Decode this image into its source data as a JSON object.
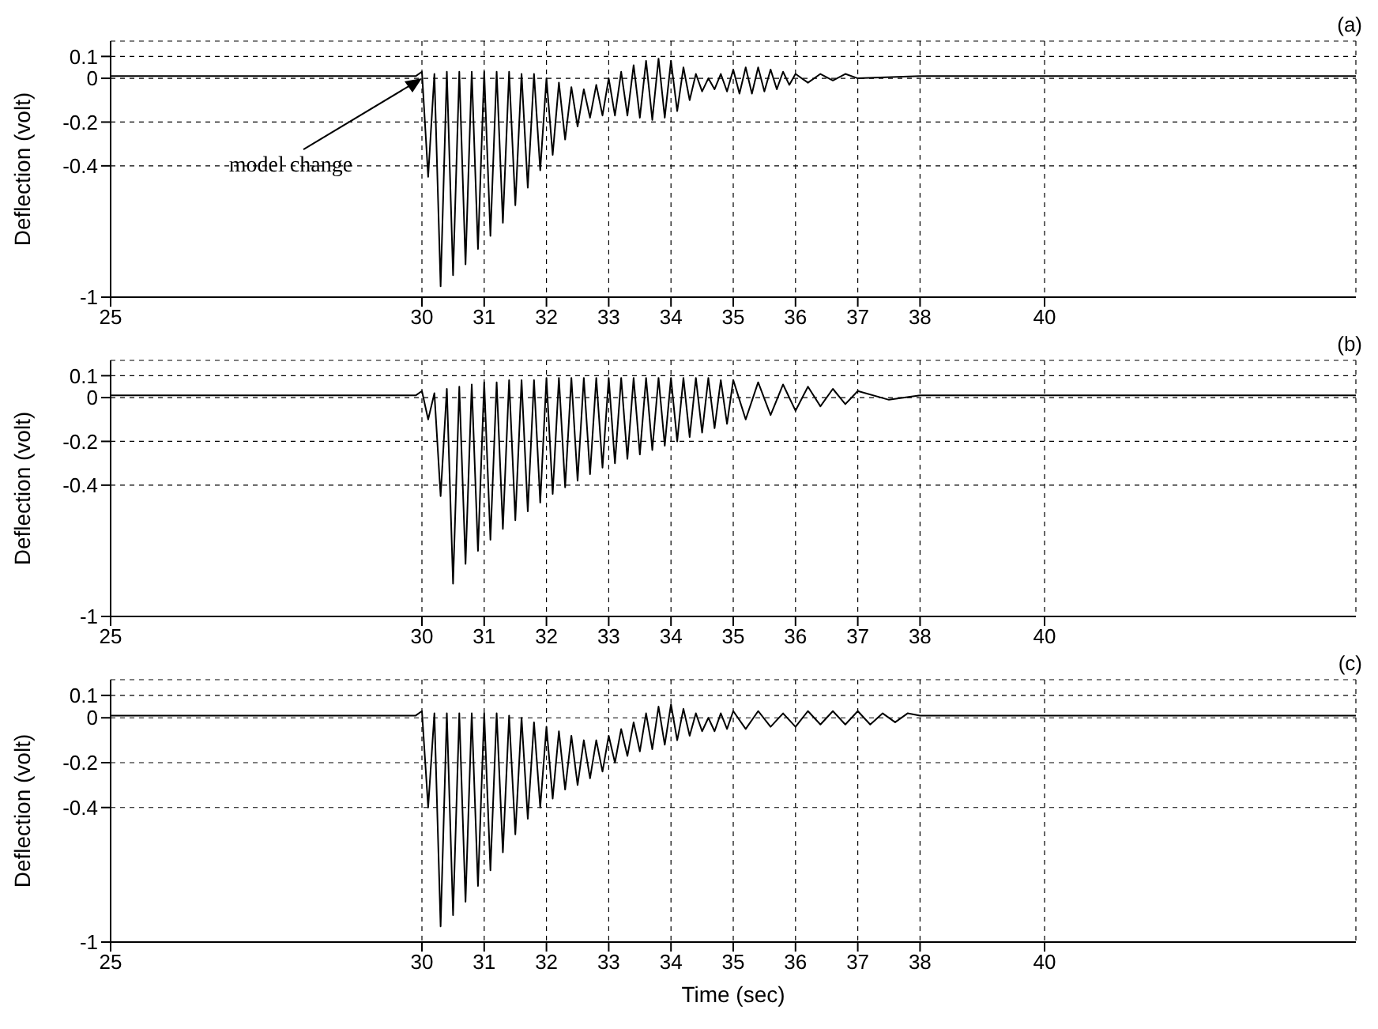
{
  "chart_data": [
    {
      "type": "line",
      "title": "(a)",
      "ylabel": "Deflection (volt)",
      "color": "#000000",
      "grid": true,
      "marker": "none",
      "line_style": "solid",
      "xlim": [
        25,
        45
      ],
      "ylim": [
        -1,
        0.17
      ],
      "xticks": [
        25,
        30,
        31,
        32,
        33,
        34,
        35,
        36,
        37,
        38,
        40
      ],
      "yticks": [
        0.1,
        0,
        -0.2,
        -0.4,
        -1
      ],
      "annotations": [
        {
          "text": "model change",
          "x": 30,
          "y": 0
        }
      ],
      "x": [
        25,
        27,
        29.9,
        30.0,
        30.1,
        30.2,
        30.3,
        30.4,
        30.5,
        30.6,
        30.7,
        30.8,
        30.9,
        31.0,
        31.1,
        31.2,
        31.3,
        31.4,
        31.5,
        31.6,
        31.7,
        31.8,
        31.9,
        32.0,
        32.1,
        32.2,
        32.3,
        32.4,
        32.5,
        32.6,
        32.7,
        32.8,
        32.9,
        33.0,
        33.1,
        33.2,
        33.3,
        33.4,
        33.5,
        33.6,
        33.7,
        33.8,
        33.9,
        34.0,
        34.1,
        34.2,
        34.3,
        34.4,
        34.5,
        34.6,
        34.7,
        34.8,
        34.9,
        35.0,
        35.1,
        35.2,
        35.3,
        35.4,
        35.5,
        35.6,
        35.7,
        35.8,
        35.9,
        36.0,
        36.2,
        36.4,
        36.6,
        36.8,
        37,
        38,
        40,
        45
      ],
      "values": [
        0.01,
        0.01,
        0.01,
        0.03,
        -0.45,
        0.02,
        -0.95,
        0.03,
        -0.9,
        0.03,
        -0.85,
        0.03,
        -0.78,
        0.03,
        -0.72,
        0.03,
        -0.66,
        0.03,
        -0.58,
        0.02,
        -0.5,
        0.02,
        -0.42,
        0.0,
        -0.35,
        -0.02,
        -0.28,
        -0.04,
        -0.22,
        -0.05,
        -0.18,
        -0.03,
        -0.17,
        0.0,
        -0.17,
        0.03,
        -0.17,
        0.06,
        -0.18,
        0.08,
        -0.19,
        0.09,
        -0.18,
        0.08,
        -0.15,
        0.05,
        -0.1,
        0.02,
        -0.06,
        0.0,
        -0.05,
        0.02,
        -0.06,
        0.04,
        -0.07,
        0.05,
        -0.07,
        0.05,
        -0.06,
        0.04,
        -0.05,
        0.03,
        -0.03,
        0.02,
        -0.02,
        0.02,
        -0.01,
        0.02,
        0.0,
        0.01,
        0.01,
        0.01
      ]
    },
    {
      "type": "line",
      "title": "(b)",
      "ylabel": "Deflection (volt)",
      "color": "#000000",
      "grid": true,
      "marker": "none",
      "line_style": "solid",
      "xlim": [
        25,
        45
      ],
      "ylim": [
        -1,
        0.17
      ],
      "xticks": [
        25,
        30,
        31,
        32,
        33,
        34,
        35,
        36,
        37,
        38,
        40
      ],
      "yticks": [
        0.1,
        0,
        -0.2,
        -0.4,
        -1
      ],
      "x": [
        25,
        27,
        29.9,
        30.0,
        30.1,
        30.2,
        30.3,
        30.4,
        30.5,
        30.6,
        30.7,
        30.8,
        30.9,
        31.0,
        31.1,
        31.2,
        31.3,
        31.4,
        31.5,
        31.6,
        31.7,
        31.8,
        31.9,
        32.0,
        32.1,
        32.2,
        32.3,
        32.4,
        32.5,
        32.6,
        32.7,
        32.8,
        32.9,
        33.0,
        33.1,
        33.2,
        33.3,
        33.4,
        33.5,
        33.6,
        33.7,
        33.8,
        33.9,
        34.0,
        34.1,
        34.2,
        34.3,
        34.4,
        34.5,
        34.6,
        34.7,
        34.8,
        34.9,
        35.0,
        35.2,
        35.4,
        35.6,
        35.8,
        36.0,
        36.2,
        36.4,
        36.6,
        36.8,
        37.0,
        37.5,
        38,
        40,
        45
      ],
      "values": [
        0.01,
        0.01,
        0.01,
        0.03,
        -0.1,
        0.02,
        -0.45,
        0.04,
        -0.85,
        0.05,
        -0.76,
        0.06,
        -0.7,
        0.07,
        -0.65,
        0.07,
        -0.6,
        0.08,
        -0.56,
        0.08,
        -0.52,
        0.08,
        -0.48,
        0.09,
        -0.44,
        0.09,
        -0.41,
        0.09,
        -0.38,
        0.09,
        -0.35,
        0.09,
        -0.32,
        0.09,
        -0.3,
        0.09,
        -0.28,
        0.09,
        -0.26,
        0.09,
        -0.24,
        0.09,
        -0.22,
        0.09,
        -0.2,
        0.09,
        -0.18,
        0.09,
        -0.16,
        0.09,
        -0.14,
        0.08,
        -0.12,
        0.08,
        -0.1,
        0.07,
        -0.08,
        0.06,
        -0.06,
        0.05,
        -0.04,
        0.04,
        -0.03,
        0.03,
        -0.01,
        0.01,
        0.01,
        0.01
      ]
    },
    {
      "type": "line",
      "title": "(c)",
      "ylabel": "Deflection (volt)",
      "xlabel": "Time (sec)",
      "color": "#000000",
      "grid": true,
      "marker": "none",
      "line_style": "solid",
      "xlim": [
        25,
        45
      ],
      "ylim": [
        -1,
        0.17
      ],
      "xticks": [
        25,
        30,
        31,
        32,
        33,
        34,
        35,
        36,
        37,
        38,
        40
      ],
      "yticks": [
        0.1,
        0,
        -0.2,
        -0.4,
        -1
      ],
      "x": [
        25,
        27,
        29.9,
        30.0,
        30.1,
        30.2,
        30.3,
        30.4,
        30.5,
        30.6,
        30.7,
        30.8,
        30.9,
        31.0,
        31.1,
        31.2,
        31.3,
        31.4,
        31.5,
        31.6,
        31.7,
        31.8,
        31.9,
        32.0,
        32.1,
        32.2,
        32.3,
        32.4,
        32.5,
        32.6,
        32.7,
        32.8,
        32.9,
        33.0,
        33.1,
        33.2,
        33.3,
        33.4,
        33.5,
        33.6,
        33.7,
        33.8,
        33.9,
        34.0,
        34.1,
        34.2,
        34.3,
        34.4,
        34.5,
        34.6,
        34.7,
        34.8,
        34.9,
        35.0,
        35.2,
        35.4,
        35.6,
        35.8,
        36.0,
        36.2,
        36.4,
        36.6,
        36.8,
        37.0,
        37.2,
        37.4,
        37.6,
        37.8,
        38,
        40,
        45
      ],
      "values": [
        0.01,
        0.01,
        0.01,
        0.03,
        -0.4,
        0.02,
        -0.93,
        0.02,
        -0.88,
        0.02,
        -0.82,
        0.02,
        -0.75,
        0.02,
        -0.68,
        0.02,
        -0.6,
        0.01,
        -0.52,
        0.0,
        -0.45,
        -0.02,
        -0.4,
        -0.04,
        -0.36,
        -0.06,
        -0.32,
        -0.08,
        -0.3,
        -0.1,
        -0.27,
        -0.1,
        -0.24,
        -0.08,
        -0.2,
        -0.05,
        -0.17,
        -0.02,
        -0.15,
        0.02,
        -0.14,
        0.05,
        -0.12,
        0.06,
        -0.1,
        0.04,
        -0.08,
        0.02,
        -0.06,
        0.0,
        -0.06,
        0.02,
        -0.05,
        0.03,
        -0.05,
        0.03,
        -0.04,
        0.02,
        -0.04,
        0.03,
        -0.03,
        0.03,
        -0.03,
        0.03,
        -0.03,
        0.02,
        -0.02,
        0.02,
        0.01,
        0.01,
        0.01
      ]
    }
  ]
}
